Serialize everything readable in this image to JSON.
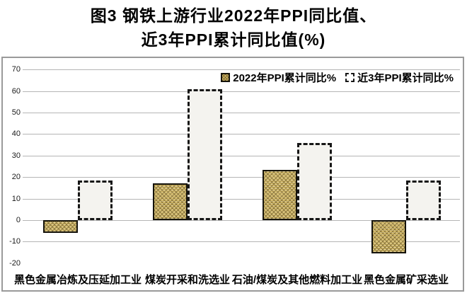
{
  "title": {
    "line1": "图3 钢铁上游行业2022年PPI同比值、",
    "line2": "近3年PPI累计同比值(%)"
  },
  "chart_data": {
    "type": "bar",
    "categories": [
      "黑色金属冶炼及压延加工业",
      "煤炭开采和洗选业",
      "石油/煤炭及其他燃料加工业",
      "黑色金属矿采选业"
    ],
    "series": [
      {
        "name": "2022年PPI累计同比%",
        "values": [
          -6,
          17,
          23.5,
          -15.5
        ]
      },
      {
        "name": "近3年PPI累计同比%",
        "values": [
          18.5,
          61,
          36,
          18.5
        ]
      }
    ],
    "ylim": [
      -20,
      70
    ],
    "ytick_step": 10,
    "grid": true,
    "legend_position": "top-right"
  },
  "colors": {
    "bar_2022_fill": "#d3ba69",
    "bar_2022_border": "#15130b",
    "bar_3yr_fill": "#f4f3ef",
    "bar_3yr_border": "#161616",
    "gridline": "#b5b5b5",
    "frame_border": "#9a9a9a",
    "text": "#000000"
  }
}
